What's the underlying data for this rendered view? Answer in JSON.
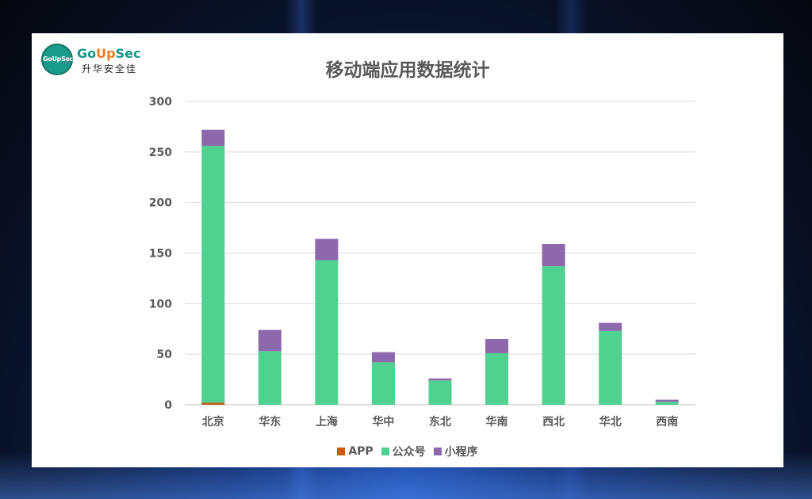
{
  "logo": {
    "brand_prefix": "Go",
    "brand_up": "Up",
    "brand_suffix": "Sec",
    "badge_text": "GoUpSec",
    "tagline": "升华安全佳"
  },
  "chart_data": {
    "type": "bar",
    "stacked": true,
    "title": "移动端应用数据统计",
    "xlabel": "",
    "ylabel": "",
    "categories": [
      "北京",
      "华东",
      "上海",
      "华中",
      "东北",
      "华南",
      "西北",
      "华北",
      "西南"
    ],
    "series": [
      {
        "name": "APP",
        "color": "#c55a11",
        "values": [
          2,
          0,
          0,
          0,
          0,
          0,
          0,
          0,
          0
        ]
      },
      {
        "name": "公众号",
        "color": "#4fd18f",
        "values": [
          254,
          53,
          143,
          42,
          24,
          51,
          137,
          73,
          3
        ]
      },
      {
        "name": "小程序",
        "color": "#8e68ad",
        "values": [
          16,
          21,
          21,
          10,
          2,
          14,
          22,
          8,
          2
        ]
      }
    ],
    "ylim": [
      0,
      300
    ],
    "yticks": [
      0,
      50,
      100,
      150,
      200,
      250,
      300
    ],
    "grid": true,
    "legend_position": "bottom"
  }
}
